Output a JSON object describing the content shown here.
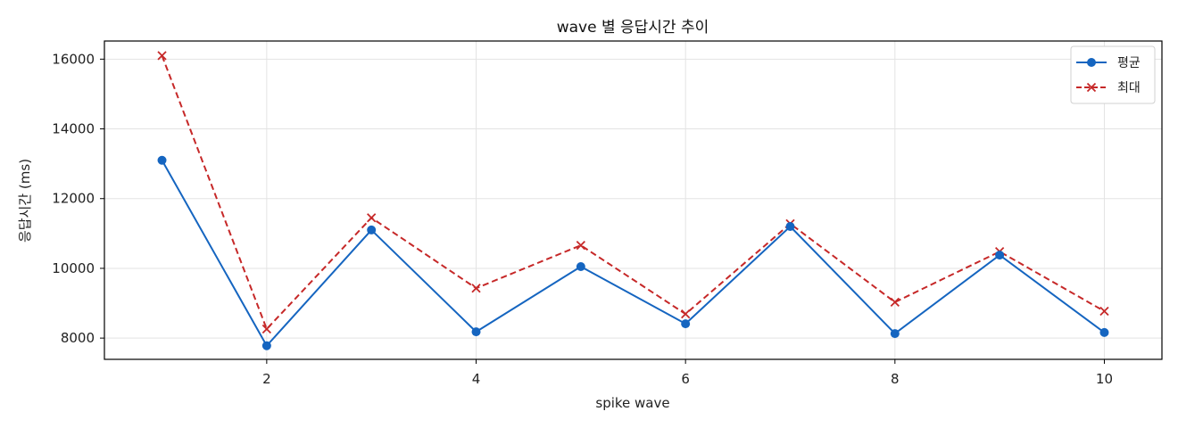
{
  "chart_data": {
    "type": "line",
    "title": "wave 별 응답시간 추이",
    "xlabel": "spike wave",
    "ylabel": "응답시간 (ms)",
    "x": [
      1,
      2,
      3,
      4,
      5,
      6,
      7,
      8,
      9,
      10
    ],
    "xticks": [
      2,
      4,
      6,
      8,
      10
    ],
    "yticks": [
      8000,
      10000,
      12000,
      14000,
      16000
    ],
    "xlim": [
      0.45,
      10.55
    ],
    "ylim": [
      7390,
      16520
    ],
    "grid": true,
    "legend_position": "top-right",
    "series": [
      {
        "name": "평균",
        "color": "#1565c0",
        "line_style": "solid",
        "marker": "circle",
        "values": [
          13100,
          7780,
          11100,
          8180,
          10050,
          8410,
          11200,
          8130,
          10380,
          8160
        ]
      },
      {
        "name": "최대",
        "color": "#c62828",
        "line_style": "dashed",
        "marker": "x",
        "values": [
          16100,
          8260,
          11450,
          9430,
          10660,
          8690,
          11280,
          9030,
          10480,
          8770
        ]
      }
    ]
  }
}
